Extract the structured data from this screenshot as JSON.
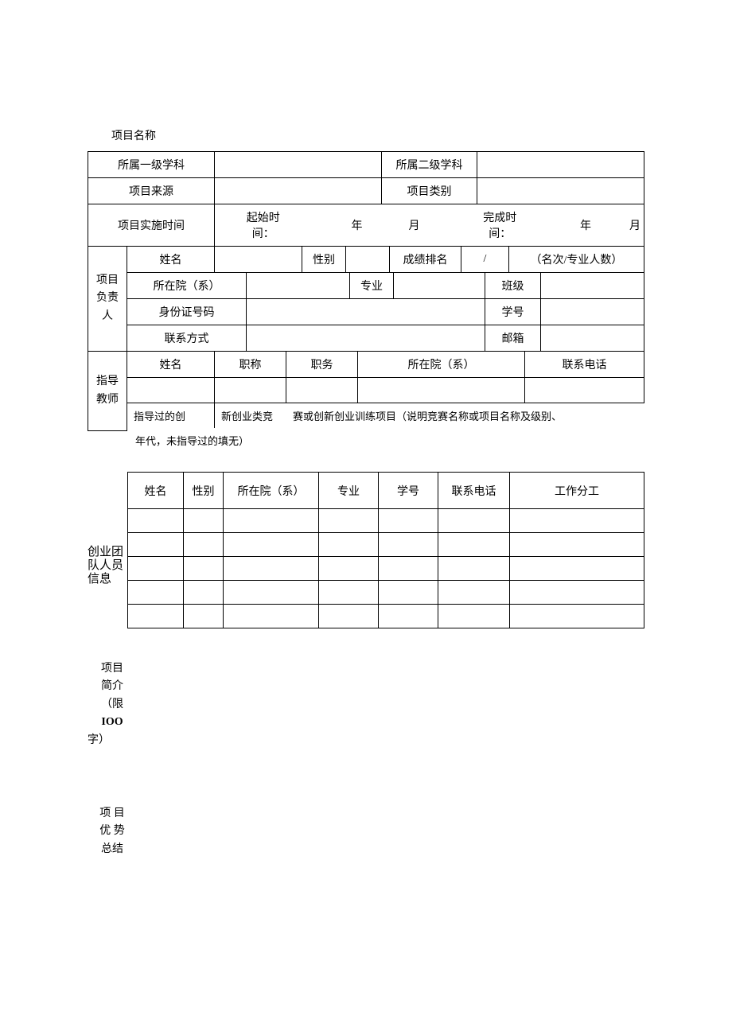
{
  "header": {
    "project_name_label": "项目名称"
  },
  "basic": {
    "discipline1_label": "所属一级学科",
    "discipline1_value": "",
    "discipline2_label": "所属二级学科",
    "discipline2_value": "",
    "source_label": "项目来源",
    "source_value": "",
    "category_label": "项目类别",
    "category_value": "",
    "time_label": "项目实施时间",
    "start_label": "起始时间：",
    "year_unit": "年",
    "month_unit": "月",
    "end_label": "完成时间：",
    "year_unit2": "年",
    "month_unit2": "月"
  },
  "leader": {
    "section": "项目负责人",
    "name_label": "姓名",
    "name_value": "",
    "gender_label": "性别",
    "gender_value": "",
    "rank_label": "成绩排名",
    "rank_value": "/",
    "rank_note": "（名次/专业人数）",
    "dept_label": "所在院（系）",
    "dept_value": "",
    "major_label": "专业",
    "major_value": "",
    "class_label": "班级",
    "class_value": "",
    "id_label": "身份证号码",
    "id_value": "",
    "studentno_label": "学号",
    "studentno_value": "",
    "contact_label": "联系方式",
    "contact_value": "",
    "email_label": "邮箱",
    "email_value": ""
  },
  "advisor": {
    "section": "指导教师",
    "name_label": "姓名",
    "title_label": "职称",
    "duty_label": "职务",
    "dept_label": "所在院（系）",
    "phone_label": "联系电话",
    "note_prefix": "指导过的创",
    "note_mid": "新创业类竞",
    "note_rest": "赛或创新创业训练项目（说明竞赛名称或项目名称及级别、",
    "note_line2": "年代，未指导过的填无）"
  },
  "team": {
    "section": "创业团队人员信息",
    "columns": [
      "姓名",
      "性别",
      "所在院（系）",
      "专业",
      "学号",
      "联系电话",
      "工作分工"
    ],
    "rows": [
      [
        "",
        "",
        "",
        "",
        "",
        "",
        ""
      ],
      [
        "",
        "",
        "",
        "",
        "",
        "",
        ""
      ],
      [
        "",
        "",
        "",
        "",
        "",
        "",
        ""
      ],
      [
        "",
        "",
        "",
        "",
        "",
        "",
        ""
      ],
      [
        "",
        "",
        "",
        "",
        "",
        "",
        ""
      ]
    ]
  },
  "summary": {
    "intro_line1": "项目",
    "intro_line2": "简介",
    "intro_line3": "（限",
    "intro_line4": "IOO",
    "intro_line5": "字）",
    "adv_line1": "项 目",
    "adv_line2": "优 势",
    "adv_line3": "总结"
  },
  "style": {
    "border_color": "#000000",
    "background": "#ffffff",
    "font_size": 14
  }
}
